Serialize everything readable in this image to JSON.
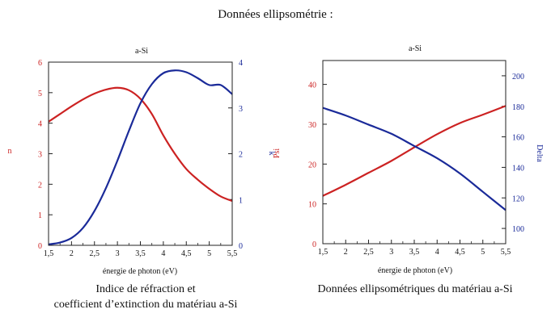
{
  "page": {
    "title": "Données ellipsométrie :",
    "caption1_line1": "Indice de réfraction et",
    "caption1_line2": "coefficient d’extinction du matériau a-Si",
    "caption2": "Données ellipsométriques du matériau a-Si"
  },
  "chart_data": [
    {
      "type": "line",
      "title": "a-Si",
      "xlabel": "énergie de photon (eV)",
      "ylabel_left": "n",
      "ylabel_right_1": "k",
      "ylabel_right_2": "Psi",
      "xlim": [
        1.5,
        5.5
      ],
      "ylim_left": [
        0,
        6
      ],
      "ylim_right": [
        0,
        4
      ],
      "x_ticks": [
        "1,5",
        "2",
        "2,5",
        "3",
        "3,5",
        "4",
        "4,5",
        "5",
        "5,5"
      ],
      "y_left_ticks": [
        "0",
        "1",
        "2",
        "3",
        "4",
        "5",
        "6"
      ],
      "y_right_ticks": [
        "0",
        "1",
        "2",
        "3",
        "4"
      ],
      "grid": false,
      "colors": {
        "left": "#cc2222",
        "right": "#1a2a99"
      },
      "series": [
        {
          "axis": "left",
          "color": "#cc2222",
          "x": [
            1.5,
            1.75,
            2.0,
            2.25,
            2.5,
            2.75,
            3.0,
            3.25,
            3.5,
            3.75,
            4.0,
            4.25,
            4.5,
            4.75,
            5.0,
            5.25,
            5.5
          ],
          "y": [
            4.05,
            4.3,
            4.55,
            4.78,
            4.97,
            5.1,
            5.16,
            5.08,
            4.8,
            4.3,
            3.6,
            3.0,
            2.5,
            2.15,
            1.85,
            1.6,
            1.45
          ]
        },
        {
          "axis": "right",
          "color": "#1a2a99",
          "x": [
            1.5,
            1.75,
            2.0,
            2.25,
            2.5,
            2.75,
            3.0,
            3.25,
            3.5,
            3.75,
            4.0,
            4.25,
            4.5,
            4.75,
            5.0,
            5.25,
            5.5
          ],
          "y": [
            0.02,
            0.06,
            0.16,
            0.38,
            0.75,
            1.25,
            1.85,
            2.5,
            3.1,
            3.52,
            3.76,
            3.82,
            3.78,
            3.65,
            3.5,
            3.5,
            3.3
          ]
        }
      ]
    },
    {
      "type": "line",
      "title": "a-Si",
      "xlabel": "énergie de photon (eV)",
      "ylabel_right": "Delta",
      "xlim": [
        1.5,
        5.5
      ],
      "ylim_left": [
        0,
        46
      ],
      "ylim_right": [
        90,
        210
      ],
      "x_ticks": [
        "1,5",
        "2",
        "2,5",
        "3",
        "3,5",
        "4",
        "4,5",
        "5",
        "5,5"
      ],
      "y_left_ticks": [
        "0",
        "10",
        "20",
        "30",
        "40"
      ],
      "y_right_ticks": [
        "100",
        "120",
        "140",
        "160",
        "180",
        "200"
      ],
      "grid": false,
      "colors": {
        "left": "#cc2222",
        "right": "#1a2a99"
      },
      "series": [
        {
          "axis": "left",
          "color": "#cc2222",
          "x": [
            1.5,
            2.0,
            2.5,
            3.0,
            3.5,
            4.0,
            4.5,
            5.0,
            5.5
          ],
          "y": [
            12,
            14.8,
            17.8,
            20.8,
            24.2,
            27.5,
            30.3,
            32.4,
            34.6
          ]
        },
        {
          "axis": "right",
          "color": "#1a2a99",
          "x": [
            1.5,
            2.0,
            2.5,
            3.0,
            3.5,
            4.0,
            4.5,
            5.0,
            5.5
          ],
          "y": [
            179,
            174,
            168,
            162,
            154,
            146,
            136,
            124,
            112
          ]
        }
      ]
    }
  ]
}
